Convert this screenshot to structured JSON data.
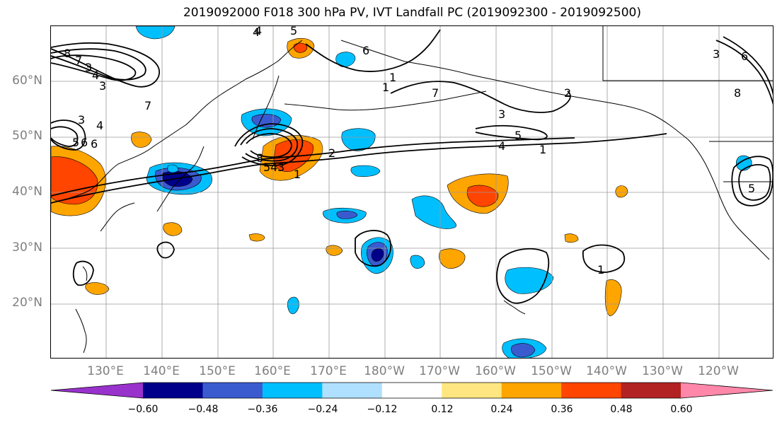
{
  "title": "2019092000 F018 300 hPa PV, IVT Landfall PC (2019092300 - 2019092500)",
  "lat_labels": [
    "60°N",
    "50°N",
    "40°N",
    "30°N",
    "20°N"
  ],
  "lon_labels": [
    "130°E",
    "140°E",
    "150°E",
    "160°E",
    "170°E",
    "180°W",
    "170°W",
    "160°W",
    "150°W",
    "140°W",
    "130°W",
    "120°W"
  ],
  "colorbar": {
    "ticks": [
      "−0.60",
      "−0.48",
      "−0.36",
      "−0.24",
      "−0.12",
      "0.12",
      "0.24",
      "0.36",
      "0.48",
      "0.60"
    ],
    "colors": [
      "#9932cc",
      "#00008b",
      "#3a5bd0",
      "#00bfff",
      "#b0e0ff",
      "#ffffff",
      "#ffe680",
      "#ffa500",
      "#ff4500",
      "#b22222",
      "#ff88aa"
    ]
  },
  "contour_labels": [
    "4",
    "8",
    "7",
    "3",
    "4",
    "3",
    "3",
    "4",
    "6",
    "5",
    "6",
    "7",
    "8",
    "5",
    "4",
    "3",
    "1",
    "2",
    "4",
    "5",
    "1",
    "6",
    "7",
    "1",
    "5",
    "4",
    "3",
    "2",
    "1",
    "3",
    "6",
    "8",
    "5",
    "1"
  ]
}
